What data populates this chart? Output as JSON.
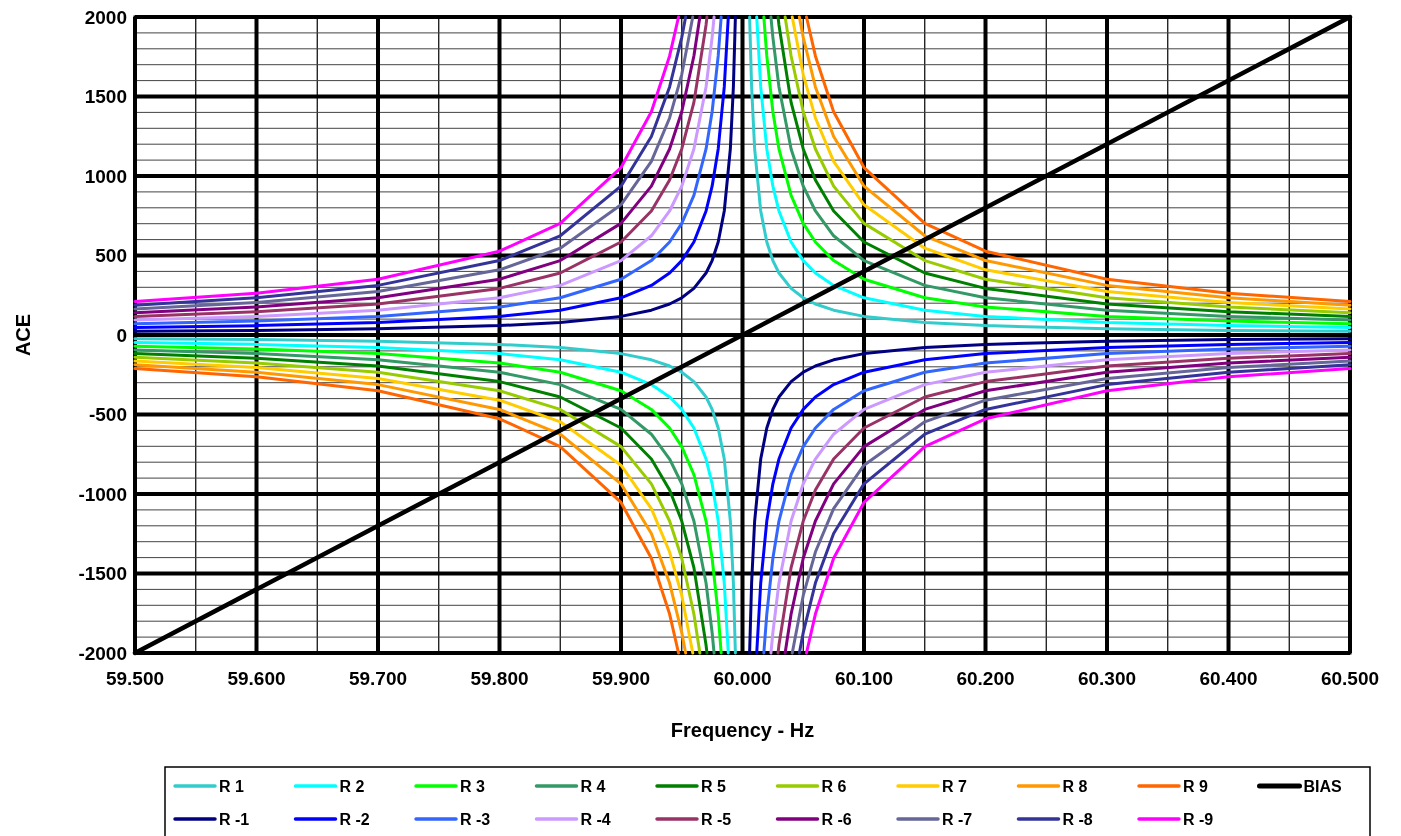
{
  "chart_data": {
    "type": "line",
    "xlabel": "Frequency - Hz",
    "ylabel": "ACE",
    "xlim": [
      59.5,
      60.5
    ],
    "ylim": [
      -2000,
      2000
    ],
    "xticks": [
      {
        "value": 59.5,
        "label": "59.500"
      },
      {
        "value": 59.6,
        "label": "59.600"
      },
      {
        "value": 59.7,
        "label": "59.700"
      },
      {
        "value": 59.8,
        "label": "59.800"
      },
      {
        "value": 59.9,
        "label": "59.900"
      },
      {
        "value": 60.0,
        "label": "60.000"
      },
      {
        "value": 60.1,
        "label": "60.100"
      },
      {
        "value": 60.2,
        "label": "60.200"
      },
      {
        "value": 60.3,
        "label": "60.300"
      },
      {
        "value": 60.4,
        "label": "60.400"
      },
      {
        "value": 60.5,
        "label": "60.500"
      }
    ],
    "yticks": [
      -2000,
      -1500,
      -1000,
      -500,
      0,
      500,
      1000,
      1500,
      2000
    ],
    "grid": true,
    "legend": "bottom",
    "marker": "none",
    "line_style": "solid",
    "series": [
      {
        "name": "R 1",
        "color": "#33cccc",
        "x": [
          59.5,
          59.6,
          59.7,
          59.8,
          59.85,
          59.9,
          59.925,
          59.94,
          59.95,
          59.96,
          59.97,
          59.975,
          59.98,
          59.985,
          59.99,
          59.9925,
          59.99415,
          60,
          60.00585,
          60.0075,
          60.01,
          60.015,
          60.02,
          60.025,
          60.03,
          60.04,
          60.05,
          60.06,
          60.075,
          60.1,
          60.15,
          60.2,
          60.3,
          60.4,
          60.5
        ],
        "values": [
          -23,
          -29,
          -39,
          -59,
          -78,
          -117,
          -156,
          -195,
          -234,
          -293,
          -390,
          -468,
          -585,
          -780,
          -1170,
          -1560,
          -2000,
          null,
          2000,
          1560,
          1170,
          780,
          585,
          468,
          390,
          293,
          234,
          195,
          156,
          117,
          78,
          59,
          39,
          29,
          23
        ]
      },
      {
        "name": "R 2",
        "color": "#00ffff",
        "x": [
          59.5,
          59.6,
          59.7,
          59.8,
          59.85,
          59.9,
          59.925,
          59.94,
          59.95,
          59.96,
          59.97,
          59.975,
          59.98,
          59.985,
          59.9883,
          60,
          60.0117,
          60.015,
          60.02,
          60.025,
          60.03,
          60.04,
          60.05,
          60.06,
          60.075,
          60.1,
          60.15,
          60.2,
          60.3,
          60.4,
          60.5
        ],
        "values": [
          -47,
          -59,
          -78,
          -117,
          -156,
          -234,
          -312,
          -390,
          -468,
          -585,
          -780,
          -936,
          -1170,
          -1560,
          -2000,
          null,
          2000,
          1560,
          1170,
          936,
          780,
          585,
          468,
          390,
          312,
          234,
          156,
          117,
          78,
          59,
          47
        ]
      },
      {
        "name": "R 3",
        "color": "#00ff00",
        "x": [
          59.5,
          59.6,
          59.7,
          59.8,
          59.85,
          59.9,
          59.925,
          59.94,
          59.95,
          59.96,
          59.97,
          59.975,
          59.98,
          59.98245,
          60,
          60.01755,
          60.02,
          60.025,
          60.03,
          60.04,
          60.05,
          60.06,
          60.075,
          60.1,
          60.15,
          60.2,
          60.3,
          60.4,
          60.5
        ],
        "values": [
          -70,
          -88,
          -117,
          -176,
          -234,
          -351,
          -468,
          -585,
          -702,
          -878,
          -1170,
          -1404,
          -1755,
          -2000,
          null,
          2000,
          1755,
          1404,
          1170,
          878,
          702,
          585,
          468,
          351,
          234,
          176,
          117,
          88,
          70
        ]
      },
      {
        "name": "R 4",
        "color": "#339966",
        "x": [
          59.5,
          59.6,
          59.7,
          59.8,
          59.85,
          59.9,
          59.925,
          59.94,
          59.95,
          59.96,
          59.97,
          59.975,
          59.9766,
          60,
          60.0234,
          60.025,
          60.03,
          60.04,
          60.05,
          60.06,
          60.075,
          60.1,
          60.15,
          60.2,
          60.3,
          60.4,
          60.5
        ],
        "values": [
          -94,
          -117,
          -156,
          -234,
          -312,
          -468,
          -624,
          -780,
          -936,
          -1170,
          -1560,
          -1872,
          -2000,
          null,
          2000,
          1872,
          1560,
          1170,
          936,
          780,
          624,
          468,
          312,
          234,
          156,
          117,
          94
        ]
      },
      {
        "name": "R 5",
        "color": "#008000",
        "x": [
          59.5,
          59.6,
          59.7,
          59.8,
          59.85,
          59.9,
          59.925,
          59.94,
          59.95,
          59.96,
          59.97,
          59.97075,
          60,
          60.02925,
          60.03,
          60.04,
          60.05,
          60.06,
          60.075,
          60.1,
          60.15,
          60.2,
          60.3,
          60.4,
          60.5
        ],
        "values": [
          -117,
          -146,
          -195,
          -293,
          -390,
          -585,
          -780,
          -975,
          -1170,
          -1463,
          -1950,
          -2000,
          null,
          2000,
          1950,
          1463,
          1170,
          975,
          780,
          585,
          390,
          293,
          195,
          146,
          117
        ]
      },
      {
        "name": "R 6",
        "color": "#99cc00",
        "x": [
          59.5,
          59.6,
          59.7,
          59.8,
          59.85,
          59.9,
          59.925,
          59.94,
          59.95,
          59.96,
          59.9649,
          60,
          60.0351,
          60.04,
          60.05,
          60.06,
          60.075,
          60.1,
          60.15,
          60.2,
          60.3,
          60.4,
          60.5
        ],
        "values": [
          -140,
          -176,
          -234,
          -351,
          -468,
          -702,
          -936,
          -1170,
          -1404,
          -1755,
          -2000,
          null,
          2000,
          1755,
          1404,
          1170,
          936,
          702,
          468,
          351,
          234,
          176,
          140
        ]
      },
      {
        "name": "R 7",
        "color": "#ffcc00",
        "x": [
          59.5,
          59.6,
          59.7,
          59.8,
          59.85,
          59.9,
          59.925,
          59.94,
          59.95,
          59.95905,
          60,
          60.04095,
          60.05,
          60.06,
          60.075,
          60.1,
          60.15,
          60.2,
          60.3,
          60.4,
          60.5
        ],
        "values": [
          -164,
          -205,
          -273,
          -410,
          -546,
          -819,
          -1092,
          -1365,
          -1638,
          -2000,
          null,
          2000,
          1638,
          1365,
          1092,
          819,
          546,
          410,
          273,
          205,
          164
        ]
      },
      {
        "name": "R 8",
        "color": "#ff9900",
        "x": [
          59.5,
          59.6,
          59.7,
          59.8,
          59.85,
          59.9,
          59.925,
          59.94,
          59.95,
          59.9532,
          60,
          60.0468,
          60.05,
          60.06,
          60.075,
          60.1,
          60.15,
          60.2,
          60.3,
          60.4,
          60.5
        ],
        "values": [
          -187,
          -234,
          -312,
          -468,
          -624,
          -936,
          -1248,
          -1560,
          -1872,
          -2000,
          null,
          2000,
          1872,
          1560,
          1248,
          936,
          624,
          468,
          312,
          234,
          187
        ]
      },
      {
        "name": "R 9",
        "color": "#ff6600",
        "x": [
          59.5,
          59.6,
          59.7,
          59.8,
          59.85,
          59.9,
          59.925,
          59.94,
          59.94735,
          60,
          60.05265,
          60.06,
          60.075,
          60.1,
          60.15,
          60.2,
          60.3,
          60.4,
          60.5
        ],
        "values": [
          -211,
          -263,
          -351,
          -527,
          -702,
          -1053,
          -1404,
          -1755,
          -2000,
          null,
          2000,
          1755,
          1404,
          1053,
          702,
          527,
          351,
          263,
          211
        ]
      },
      {
        "name": "BIAS",
        "color": "#000000",
        "x": [
          59.5,
          60.5
        ],
        "values": [
          -2000,
          2000
        ]
      },
      {
        "name": "R -1",
        "color": "#000080",
        "x": [
          59.5,
          59.6,
          59.7,
          59.8,
          59.85,
          59.9,
          59.925,
          59.94,
          59.95,
          59.96,
          59.97,
          59.975,
          59.98,
          59.985,
          59.99,
          59.9925,
          59.99415,
          60,
          60.00585,
          60.0075,
          60.01,
          60.015,
          60.02,
          60.025,
          60.03,
          60.04,
          60.05,
          60.06,
          60.075,
          60.1,
          60.15,
          60.2,
          60.3,
          60.4,
          60.5
        ],
        "values": [
          23,
          29,
          39,
          59,
          78,
          117,
          156,
          195,
          234,
          293,
          390,
          468,
          585,
          780,
          1170,
          1560,
          2000,
          null,
          -2000,
          -1560,
          -1170,
          -780,
          -585,
          -468,
          -390,
          -293,
          -234,
          -195,
          -156,
          -117,
          -78,
          -59,
          -39,
          -29,
          -23
        ]
      },
      {
        "name": "R -2",
        "color": "#0000ff",
        "x": [
          59.5,
          59.6,
          59.7,
          59.8,
          59.85,
          59.9,
          59.925,
          59.94,
          59.95,
          59.96,
          59.97,
          59.975,
          59.98,
          59.985,
          59.9883,
          60,
          60.0117,
          60.015,
          60.02,
          60.025,
          60.03,
          60.04,
          60.05,
          60.06,
          60.075,
          60.1,
          60.15,
          60.2,
          60.3,
          60.4,
          60.5
        ],
        "values": [
          47,
          59,
          78,
          117,
          156,
          234,
          312,
          390,
          468,
          585,
          780,
          936,
          1170,
          1560,
          2000,
          null,
          -2000,
          -1560,
          -1170,
          -936,
          -780,
          -585,
          -468,
          -390,
          -312,
          -234,
          -156,
          -117,
          -78,
          -59,
          -47
        ]
      },
      {
        "name": "R -3",
        "color": "#3366ff",
        "x": [
          59.5,
          59.6,
          59.7,
          59.8,
          59.85,
          59.9,
          59.925,
          59.94,
          59.95,
          59.96,
          59.97,
          59.975,
          59.98,
          59.98245,
          60,
          60.01755,
          60.02,
          60.025,
          60.03,
          60.04,
          60.05,
          60.06,
          60.075,
          60.1,
          60.15,
          60.2,
          60.3,
          60.4,
          60.5
        ],
        "values": [
          70,
          88,
          117,
          176,
          234,
          351,
          468,
          585,
          702,
          878,
          1170,
          1404,
          1755,
          2000,
          null,
          -2000,
          -1755,
          -1404,
          -1170,
          -878,
          -702,
          -585,
          -468,
          -351,
          -234,
          -176,
          -117,
          -88,
          -70
        ]
      },
      {
        "name": "R -4",
        "color": "#cc99ff",
        "x": [
          59.5,
          59.6,
          59.7,
          59.8,
          59.85,
          59.9,
          59.925,
          59.94,
          59.95,
          59.96,
          59.97,
          59.975,
          59.9766,
          60,
          60.0234,
          60.025,
          60.03,
          60.04,
          60.05,
          60.06,
          60.075,
          60.1,
          60.15,
          60.2,
          60.3,
          60.4,
          60.5
        ],
        "values": [
          94,
          117,
          156,
          234,
          312,
          468,
          624,
          780,
          936,
          1170,
          1560,
          1872,
          2000,
          null,
          -2000,
          -1872,
          -1560,
          -1170,
          -936,
          -780,
          -624,
          -468,
          -312,
          -234,
          -156,
          -117,
          -94
        ]
      },
      {
        "name": "R -5",
        "color": "#993366",
        "x": [
          59.5,
          59.6,
          59.7,
          59.8,
          59.85,
          59.9,
          59.925,
          59.94,
          59.95,
          59.96,
          59.97,
          59.97075,
          60,
          60.02925,
          60.03,
          60.04,
          60.05,
          60.06,
          60.075,
          60.1,
          60.15,
          60.2,
          60.3,
          60.4,
          60.5
        ],
        "values": [
          117,
          146,
          195,
          293,
          390,
          585,
          780,
          975,
          1170,
          1463,
          1950,
          2000,
          null,
          -2000,
          -1950,
          -1463,
          -1170,
          -975,
          -780,
          -585,
          -390,
          -293,
          -195,
          -146,
          -117
        ]
      },
      {
        "name": "R -6",
        "color": "#800080",
        "x": [
          59.5,
          59.6,
          59.7,
          59.8,
          59.85,
          59.9,
          59.925,
          59.94,
          59.95,
          59.96,
          59.9649,
          60,
          60.0351,
          60.04,
          60.05,
          60.06,
          60.075,
          60.1,
          60.15,
          60.2,
          60.3,
          60.4,
          60.5
        ],
        "values": [
          140,
          176,
          234,
          351,
          468,
          702,
          936,
          1170,
          1404,
          1755,
          2000,
          null,
          -2000,
          -1755,
          -1404,
          -1170,
          -936,
          -702,
          -468,
          -351,
          -234,
          -176,
          -140
        ]
      },
      {
        "name": "R -7",
        "color": "#666699",
        "x": [
          59.5,
          59.6,
          59.7,
          59.8,
          59.85,
          59.9,
          59.925,
          59.94,
          59.95,
          59.95905,
          60,
          60.04095,
          60.05,
          60.06,
          60.075,
          60.1,
          60.15,
          60.2,
          60.3,
          60.4,
          60.5
        ],
        "values": [
          164,
          205,
          273,
          410,
          546,
          819,
          1092,
          1365,
          1638,
          2000,
          null,
          -2000,
          -1638,
          -1365,
          -1092,
          -819,
          -546,
          -410,
          -273,
          -205,
          -164
        ]
      },
      {
        "name": "R -8",
        "color": "#333399",
        "x": [
          59.5,
          59.6,
          59.7,
          59.8,
          59.85,
          59.9,
          59.925,
          59.94,
          59.95,
          59.9532,
          60,
          60.0468,
          60.05,
          60.06,
          60.075,
          60.1,
          60.15,
          60.2,
          60.3,
          60.4,
          60.5
        ],
        "values": [
          187,
          234,
          312,
          468,
          624,
          936,
          1248,
          1560,
          1872,
          2000,
          null,
          -2000,
          -1872,
          -1560,
          -1248,
          -936,
          -624,
          -468,
          -312,
          -234,
          -187
        ]
      },
      {
        "name": "R -9",
        "color": "#ff00ff",
        "x": [
          59.5,
          59.6,
          59.7,
          59.8,
          59.85,
          59.9,
          59.925,
          59.94,
          59.94735,
          60,
          60.05265,
          60.06,
          60.075,
          60.1,
          60.15,
          60.2,
          60.3,
          60.4,
          60.5
        ],
        "values": [
          211,
          263,
          351,
          527,
          702,
          1053,
          1404,
          1755,
          2000,
          null,
          -2000,
          -1755,
          -1404,
          -1053,
          -702,
          -527,
          -351,
          -263,
          -211
        ]
      }
    ]
  }
}
